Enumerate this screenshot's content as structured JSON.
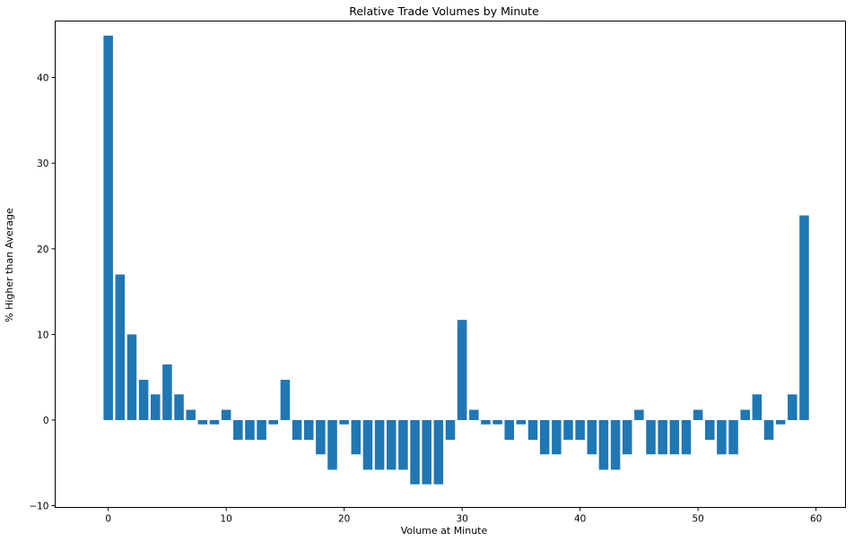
{
  "chart_data": {
    "type": "bar",
    "title": "Relative Trade Volumes by Minute",
    "xlabel": "Volume at Minute",
    "ylabel": "% Higher than Average",
    "xlim": [
      -4.5,
      62.5
    ],
    "ylim": [
      -10,
      45
    ],
    "xticks": [
      0,
      10,
      20,
      30,
      40,
      50,
      60
    ],
    "yticks": [
      -10,
      0,
      10,
      20,
      30,
      40
    ],
    "grid": false,
    "bar_color": "#1f77b4",
    "categories": [
      0,
      1,
      2,
      3,
      4,
      5,
      6,
      7,
      8,
      9,
      10,
      11,
      12,
      13,
      14,
      15,
      16,
      17,
      18,
      19,
      20,
      21,
      22,
      23,
      24,
      25,
      26,
      27,
      28,
      29,
      30,
      31,
      32,
      33,
      34,
      35,
      36,
      37,
      38,
      39,
      40,
      41,
      42,
      43,
      44,
      45,
      46,
      47,
      48,
      49,
      50,
      51,
      52,
      53,
      54,
      55,
      56,
      57,
      58,
      59
    ],
    "values": [
      44.9,
      17.0,
      10.0,
      4.7,
      3.0,
      6.5,
      3.0,
      1.2,
      -0.5,
      -0.5,
      1.2,
      -2.3,
      -2.3,
      -2.3,
      -0.5,
      4.7,
      -2.3,
      -2.3,
      -4.0,
      -5.8,
      -0.5,
      -4.0,
      -5.8,
      -5.8,
      -5.8,
      -5.8,
      -7.5,
      -7.5,
      -7.5,
      -2.3,
      11.7,
      1.2,
      -0.5,
      -0.5,
      -2.3,
      -0.5,
      -2.3,
      -4.0,
      -4.0,
      -2.3,
      -2.3,
      -4.0,
      -5.8,
      -5.8,
      -4.0,
      1.2,
      -4.0,
      -4.0,
      -4.0,
      -4.0,
      1.2,
      -2.3,
      -4.0,
      -4.0,
      1.2,
      3.0,
      -2.3,
      -0.5,
      3.0,
      23.9
    ]
  }
}
